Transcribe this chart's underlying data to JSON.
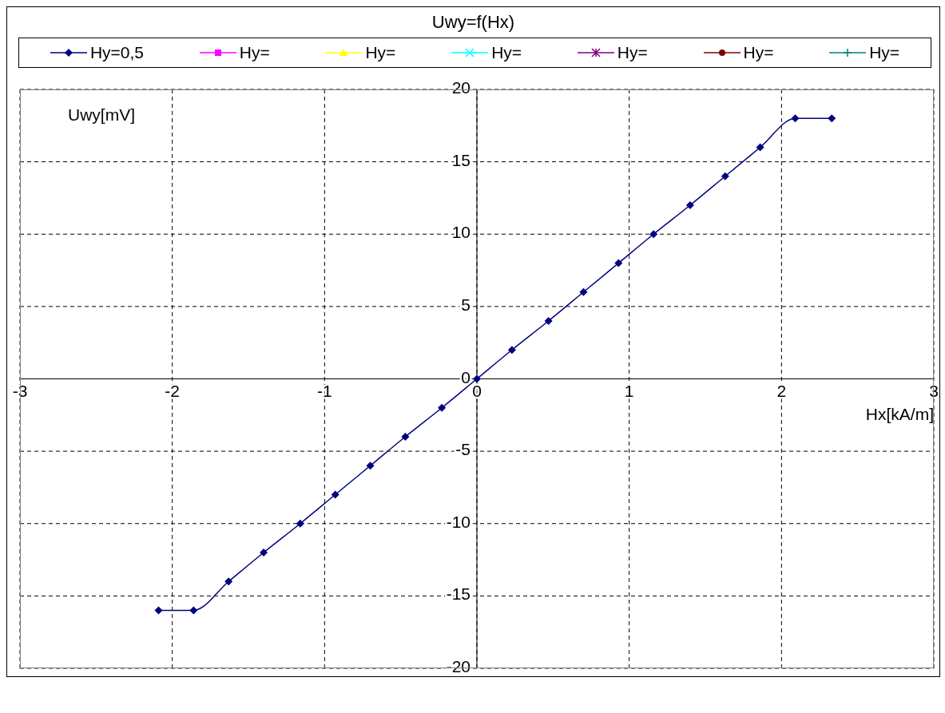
{
  "chart_data": {
    "type": "line",
    "title": "Uwy=f(Hx)",
    "xlabel": "Hx[kA/m]",
    "ylabel": "Uwy[mV]",
    "x": [
      -2.09,
      -1.86,
      -1.63,
      -1.4,
      -1.16,
      -0.93,
      -0.7,
      -0.47,
      -0.23,
      0,
      0.23,
      0.47,
      0.7,
      0.93,
      1.16,
      1.4,
      1.63,
      1.86,
      2.09,
      2.33
    ],
    "series": [
      {
        "name": "Hy=0,5",
        "color": "#000080",
        "marker": "diamond",
        "values": [
          -16,
          -16,
          -14,
          -12,
          -10,
          -8,
          -6,
          -4,
          -2,
          0,
          2,
          4,
          6,
          8,
          10,
          12,
          14,
          16,
          18,
          18
        ]
      },
      {
        "name": "Hy=",
        "color": "#ff00ff",
        "marker": "square",
        "values": [
          null,
          null,
          null,
          null,
          null,
          null,
          null,
          null,
          null,
          null,
          null,
          null,
          null,
          null,
          null,
          null,
          null,
          null,
          null,
          null
        ]
      },
      {
        "name": "Hy=",
        "color": "#ffff00",
        "marker": "triangle",
        "values": [
          null,
          null,
          null,
          null,
          null,
          null,
          null,
          null,
          null,
          null,
          null,
          null,
          null,
          null,
          null,
          null,
          null,
          null,
          null,
          null
        ]
      },
      {
        "name": "Hy=",
        "color": "#00ffff",
        "marker": "cross",
        "values": [
          null,
          null,
          null,
          null,
          null,
          null,
          null,
          null,
          null,
          null,
          null,
          null,
          null,
          null,
          null,
          null,
          null,
          null,
          null,
          null
        ]
      },
      {
        "name": "Hy=",
        "color": "#800080",
        "marker": "star",
        "values": [
          null,
          null,
          null,
          null,
          null,
          null,
          null,
          null,
          null,
          null,
          null,
          null,
          null,
          null,
          null,
          null,
          null,
          null,
          null,
          null
        ]
      },
      {
        "name": "Hy=",
        "color": "#800000",
        "marker": "circle",
        "values": [
          null,
          null,
          null,
          null,
          null,
          null,
          null,
          null,
          null,
          null,
          null,
          null,
          null,
          null,
          null,
          null,
          null,
          null,
          null,
          null
        ]
      },
      {
        "name": "Hy=",
        "color": "#008080",
        "marker": "plus",
        "values": [
          null,
          null,
          null,
          null,
          null,
          null,
          null,
          null,
          null,
          null,
          null,
          null,
          null,
          null,
          null,
          null,
          null,
          null,
          null,
          null
        ]
      }
    ],
    "xlim": [
      -3,
      3
    ],
    "xticks": [
      -3,
      -2,
      -1,
      0,
      1,
      2,
      3
    ],
    "ylim": [
      -20,
      20
    ],
    "yticks": [
      -20,
      -15,
      -10,
      -5,
      0,
      5,
      10,
      15,
      20
    ],
    "grid": true,
    "legend": "top",
    "line_style": "solid"
  }
}
